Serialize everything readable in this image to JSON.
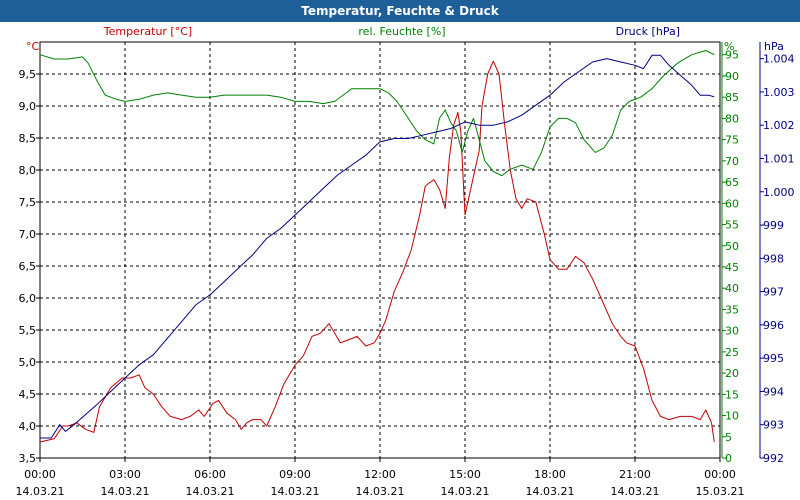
{
  "window": {
    "title": "Temperatur, Feuchte & Druck"
  },
  "chart_data": {
    "type": "line",
    "title": "Temperatur, Feuchte & Druck",
    "x": {
      "range": [
        0,
        24
      ],
      "tick_values": [
        0,
        3,
        6,
        9,
        12,
        15,
        18,
        21,
        24
      ],
      "time_labels": [
        "00:00",
        "03:00",
        "06:00",
        "09:00",
        "12:00",
        "15:00",
        "18:00",
        "21:00",
        "00:00"
      ],
      "date_labels": [
        "14.03.21",
        "14.03.21",
        "14.03.21",
        "14.03.21",
        "14.03.21",
        "14.03.21",
        "14.03.21",
        "14.03.21",
        "15.03.21"
      ]
    },
    "axes": {
      "temperature": {
        "unit": "°C",
        "range": [
          3.5,
          10.0
        ],
        "ticks": [
          "3,5",
          "4,0",
          "4,5",
          "5,0",
          "5,5",
          "6,0",
          "6,5",
          "7,0",
          "7,5",
          "8,0",
          "8,5",
          "9,0",
          "9,5"
        ]
      },
      "humidity": {
        "unit": "%",
        "range": [
          0,
          98
        ],
        "ticks": [
          "0",
          "5",
          "10",
          "15",
          "20",
          "25",
          "30",
          "35",
          "40",
          "45",
          "50",
          "55",
          "60",
          "65",
          "70",
          "75",
          "80",
          "85",
          "90",
          "95"
        ]
      },
      "pressure": {
        "unit": "hPa",
        "range": [
          992,
          1004.5
        ],
        "ticks": [
          "992",
          "993",
          "994",
          "995",
          "996",
          "997",
          "998",
          "999",
          "1.000",
          "1.001",
          "1.002",
          "1.003",
          "1.004"
        ]
      }
    },
    "series": [
      {
        "name": "Temperatur [°C]",
        "axis": "temperature",
        "color": "#c00000",
        "points": [
          [
            0,
            3.75
          ],
          [
            0.5,
            3.8
          ],
          [
            0.8,
            4.0
          ],
          [
            1.0,
            4.0
          ],
          [
            1.3,
            4.05
          ],
          [
            1.6,
            3.95
          ],
          [
            1.9,
            3.9
          ],
          [
            2.1,
            4.3
          ],
          [
            2.5,
            4.6
          ],
          [
            2.9,
            4.75
          ],
          [
            3.2,
            4.75
          ],
          [
            3.5,
            4.8
          ],
          [
            3.7,
            4.6
          ],
          [
            4.0,
            4.5
          ],
          [
            4.3,
            4.3
          ],
          [
            4.6,
            4.15
          ],
          [
            5.0,
            4.1
          ],
          [
            5.3,
            4.15
          ],
          [
            5.6,
            4.25
          ],
          [
            5.8,
            4.15
          ],
          [
            6.1,
            4.35
          ],
          [
            6.3,
            4.4
          ],
          [
            6.6,
            4.2
          ],
          [
            6.9,
            4.1
          ],
          [
            7.1,
            3.95
          ],
          [
            7.3,
            4.05
          ],
          [
            7.5,
            4.1
          ],
          [
            7.8,
            4.1
          ],
          [
            8.0,
            4.0
          ],
          [
            8.3,
            4.3
          ],
          [
            8.6,
            4.65
          ],
          [
            8.8,
            4.8
          ],
          [
            9.0,
            4.95
          ],
          [
            9.3,
            5.1
          ],
          [
            9.6,
            5.4
          ],
          [
            9.9,
            5.45
          ],
          [
            10.2,
            5.6
          ],
          [
            10.4,
            5.45
          ],
          [
            10.6,
            5.3
          ],
          [
            10.9,
            5.35
          ],
          [
            11.2,
            5.4
          ],
          [
            11.5,
            5.25
          ],
          [
            11.8,
            5.3
          ],
          [
            12.0,
            5.45
          ],
          [
            12.2,
            5.65
          ],
          [
            12.5,
            6.1
          ],
          [
            12.8,
            6.4
          ],
          [
            13.1,
            6.75
          ],
          [
            13.4,
            7.3
          ],
          [
            13.6,
            7.75
          ],
          [
            13.9,
            7.85
          ],
          [
            14.1,
            7.7
          ],
          [
            14.3,
            7.4
          ],
          [
            14.45,
            8.2
          ],
          [
            14.6,
            8.7
          ],
          [
            14.75,
            8.9
          ],
          [
            14.85,
            8.6
          ],
          [
            15.0,
            7.3
          ],
          [
            15.15,
            7.6
          ],
          [
            15.3,
            7.9
          ],
          [
            15.5,
            8.3
          ],
          [
            15.6,
            9.0
          ],
          [
            15.8,
            9.5
          ],
          [
            16.0,
            9.7
          ],
          [
            16.2,
            9.5
          ],
          [
            16.4,
            8.7
          ],
          [
            16.6,
            8.0
          ],
          [
            16.8,
            7.55
          ],
          [
            17.0,
            7.4
          ],
          [
            17.2,
            7.55
          ],
          [
            17.5,
            7.5
          ],
          [
            17.8,
            7.0
          ],
          [
            18.0,
            6.6
          ],
          [
            18.3,
            6.45
          ],
          [
            18.6,
            6.45
          ],
          [
            18.9,
            6.65
          ],
          [
            19.2,
            6.55
          ],
          [
            19.5,
            6.3
          ],
          [
            19.8,
            6.0
          ],
          [
            20.2,
            5.6
          ],
          [
            20.5,
            5.4
          ],
          [
            20.7,
            5.3
          ],
          [
            21.0,
            5.25
          ],
          [
            21.3,
            4.9
          ],
          [
            21.6,
            4.4
          ],
          [
            21.9,
            4.15
          ],
          [
            22.2,
            4.1
          ],
          [
            22.6,
            4.15
          ],
          [
            23.0,
            4.15
          ],
          [
            23.3,
            4.1
          ],
          [
            23.5,
            4.25
          ],
          [
            23.7,
            4.05
          ],
          [
            23.8,
            3.75
          ]
        ]
      },
      {
        "name": "rel. Feuchte [%]",
        "axis": "humidity",
        "color": "#008000",
        "points": [
          [
            0,
            95
          ],
          [
            0.5,
            94
          ],
          [
            1.0,
            94
          ],
          [
            1.5,
            94.5
          ],
          [
            1.7,
            93
          ],
          [
            2.0,
            89
          ],
          [
            2.3,
            85.5
          ],
          [
            2.7,
            84.5
          ],
          [
            3.0,
            84
          ],
          [
            3.5,
            84.5
          ],
          [
            4.0,
            85.5
          ],
          [
            4.5,
            86
          ],
          [
            5.0,
            85.5
          ],
          [
            5.5,
            85
          ],
          [
            6.0,
            85
          ],
          [
            6.5,
            85.5
          ],
          [
            7.0,
            85.5
          ],
          [
            7.5,
            85.5
          ],
          [
            8.0,
            85.5
          ],
          [
            8.5,
            85
          ],
          [
            9.0,
            84
          ],
          [
            9.5,
            84
          ],
          [
            10.0,
            83.5
          ],
          [
            10.4,
            84
          ],
          [
            10.7,
            85.5
          ],
          [
            11.0,
            87
          ],
          [
            11.5,
            87
          ],
          [
            12.0,
            87
          ],
          [
            12.3,
            86
          ],
          [
            12.6,
            84
          ],
          [
            13.0,
            80
          ],
          [
            13.3,
            77
          ],
          [
            13.6,
            75
          ],
          [
            13.9,
            74
          ],
          [
            14.1,
            80
          ],
          [
            14.3,
            82
          ],
          [
            14.5,
            79
          ],
          [
            14.7,
            77
          ],
          [
            14.9,
            72
          ],
          [
            15.1,
            77
          ],
          [
            15.3,
            80
          ],
          [
            15.5,
            75
          ],
          [
            15.7,
            70
          ],
          [
            16.0,
            67.5
          ],
          [
            16.3,
            66.5
          ],
          [
            16.6,
            68
          ],
          [
            17.0,
            69
          ],
          [
            17.4,
            68
          ],
          [
            17.7,
            72
          ],
          [
            18.0,
            78
          ],
          [
            18.3,
            80
          ],
          [
            18.6,
            80
          ],
          [
            18.9,
            79
          ],
          [
            19.2,
            75
          ],
          [
            19.6,
            72
          ],
          [
            19.9,
            73
          ],
          [
            20.2,
            76
          ],
          [
            20.5,
            82
          ],
          [
            20.8,
            84
          ],
          [
            21.2,
            85
          ],
          [
            21.6,
            87
          ],
          [
            22.0,
            90
          ],
          [
            22.5,
            93
          ],
          [
            23.0,
            95
          ],
          [
            23.5,
            96
          ],
          [
            23.8,
            95
          ]
        ]
      },
      {
        "name": "Druck [hPa]",
        "axis": "pressure",
        "color": "#000080",
        "points": [
          [
            0,
            992.6
          ],
          [
            0.4,
            992.6
          ],
          [
            0.7,
            993
          ],
          [
            0.9,
            992.8
          ],
          [
            1.2,
            993
          ],
          [
            1.6,
            993.3
          ],
          [
            2.0,
            993.6
          ],
          [
            2.5,
            994
          ],
          [
            3.0,
            994.4
          ],
          [
            3.5,
            994.8
          ],
          [
            4.0,
            995.1
          ],
          [
            4.5,
            995.6
          ],
          [
            5.0,
            996.1
          ],
          [
            5.5,
            996.6
          ],
          [
            6.0,
            996.9
          ],
          [
            6.5,
            997.3
          ],
          [
            7.0,
            997.7
          ],
          [
            7.5,
            998.1
          ],
          [
            8.0,
            998.6
          ],
          [
            8.5,
            998.9
          ],
          [
            9.0,
            999.3
          ],
          [
            9.5,
            999.7
          ],
          [
            10.0,
            1000.1
          ],
          [
            10.5,
            1000.5
          ],
          [
            11.0,
            1000.8
          ],
          [
            11.5,
            1001.1
          ],
          [
            12.0,
            1001.5
          ],
          [
            12.5,
            1001.6
          ],
          [
            13.0,
            1001.6
          ],
          [
            13.5,
            1001.7
          ],
          [
            14.0,
            1001.8
          ],
          [
            14.5,
            1001.9
          ],
          [
            15.0,
            1002.1
          ],
          [
            15.5,
            1002.0
          ],
          [
            16.0,
            1002.0
          ],
          [
            16.5,
            1002.1
          ],
          [
            17.0,
            1002.3
          ],
          [
            17.5,
            1002.6
          ],
          [
            18.0,
            1002.9
          ],
          [
            18.5,
            1003.3
          ],
          [
            19.0,
            1003.6
          ],
          [
            19.5,
            1003.9
          ],
          [
            20.0,
            1004.0
          ],
          [
            20.5,
            1003.9
          ],
          [
            21.0,
            1003.8
          ],
          [
            21.3,
            1003.7
          ],
          [
            21.6,
            1004.1
          ],
          [
            21.9,
            1004.1
          ],
          [
            22.2,
            1003.8
          ],
          [
            22.6,
            1003.5
          ],
          [
            23.0,
            1003.2
          ],
          [
            23.3,
            1002.9
          ],
          [
            23.6,
            1002.9
          ],
          [
            23.8,
            1002.85
          ]
        ]
      }
    ]
  }
}
